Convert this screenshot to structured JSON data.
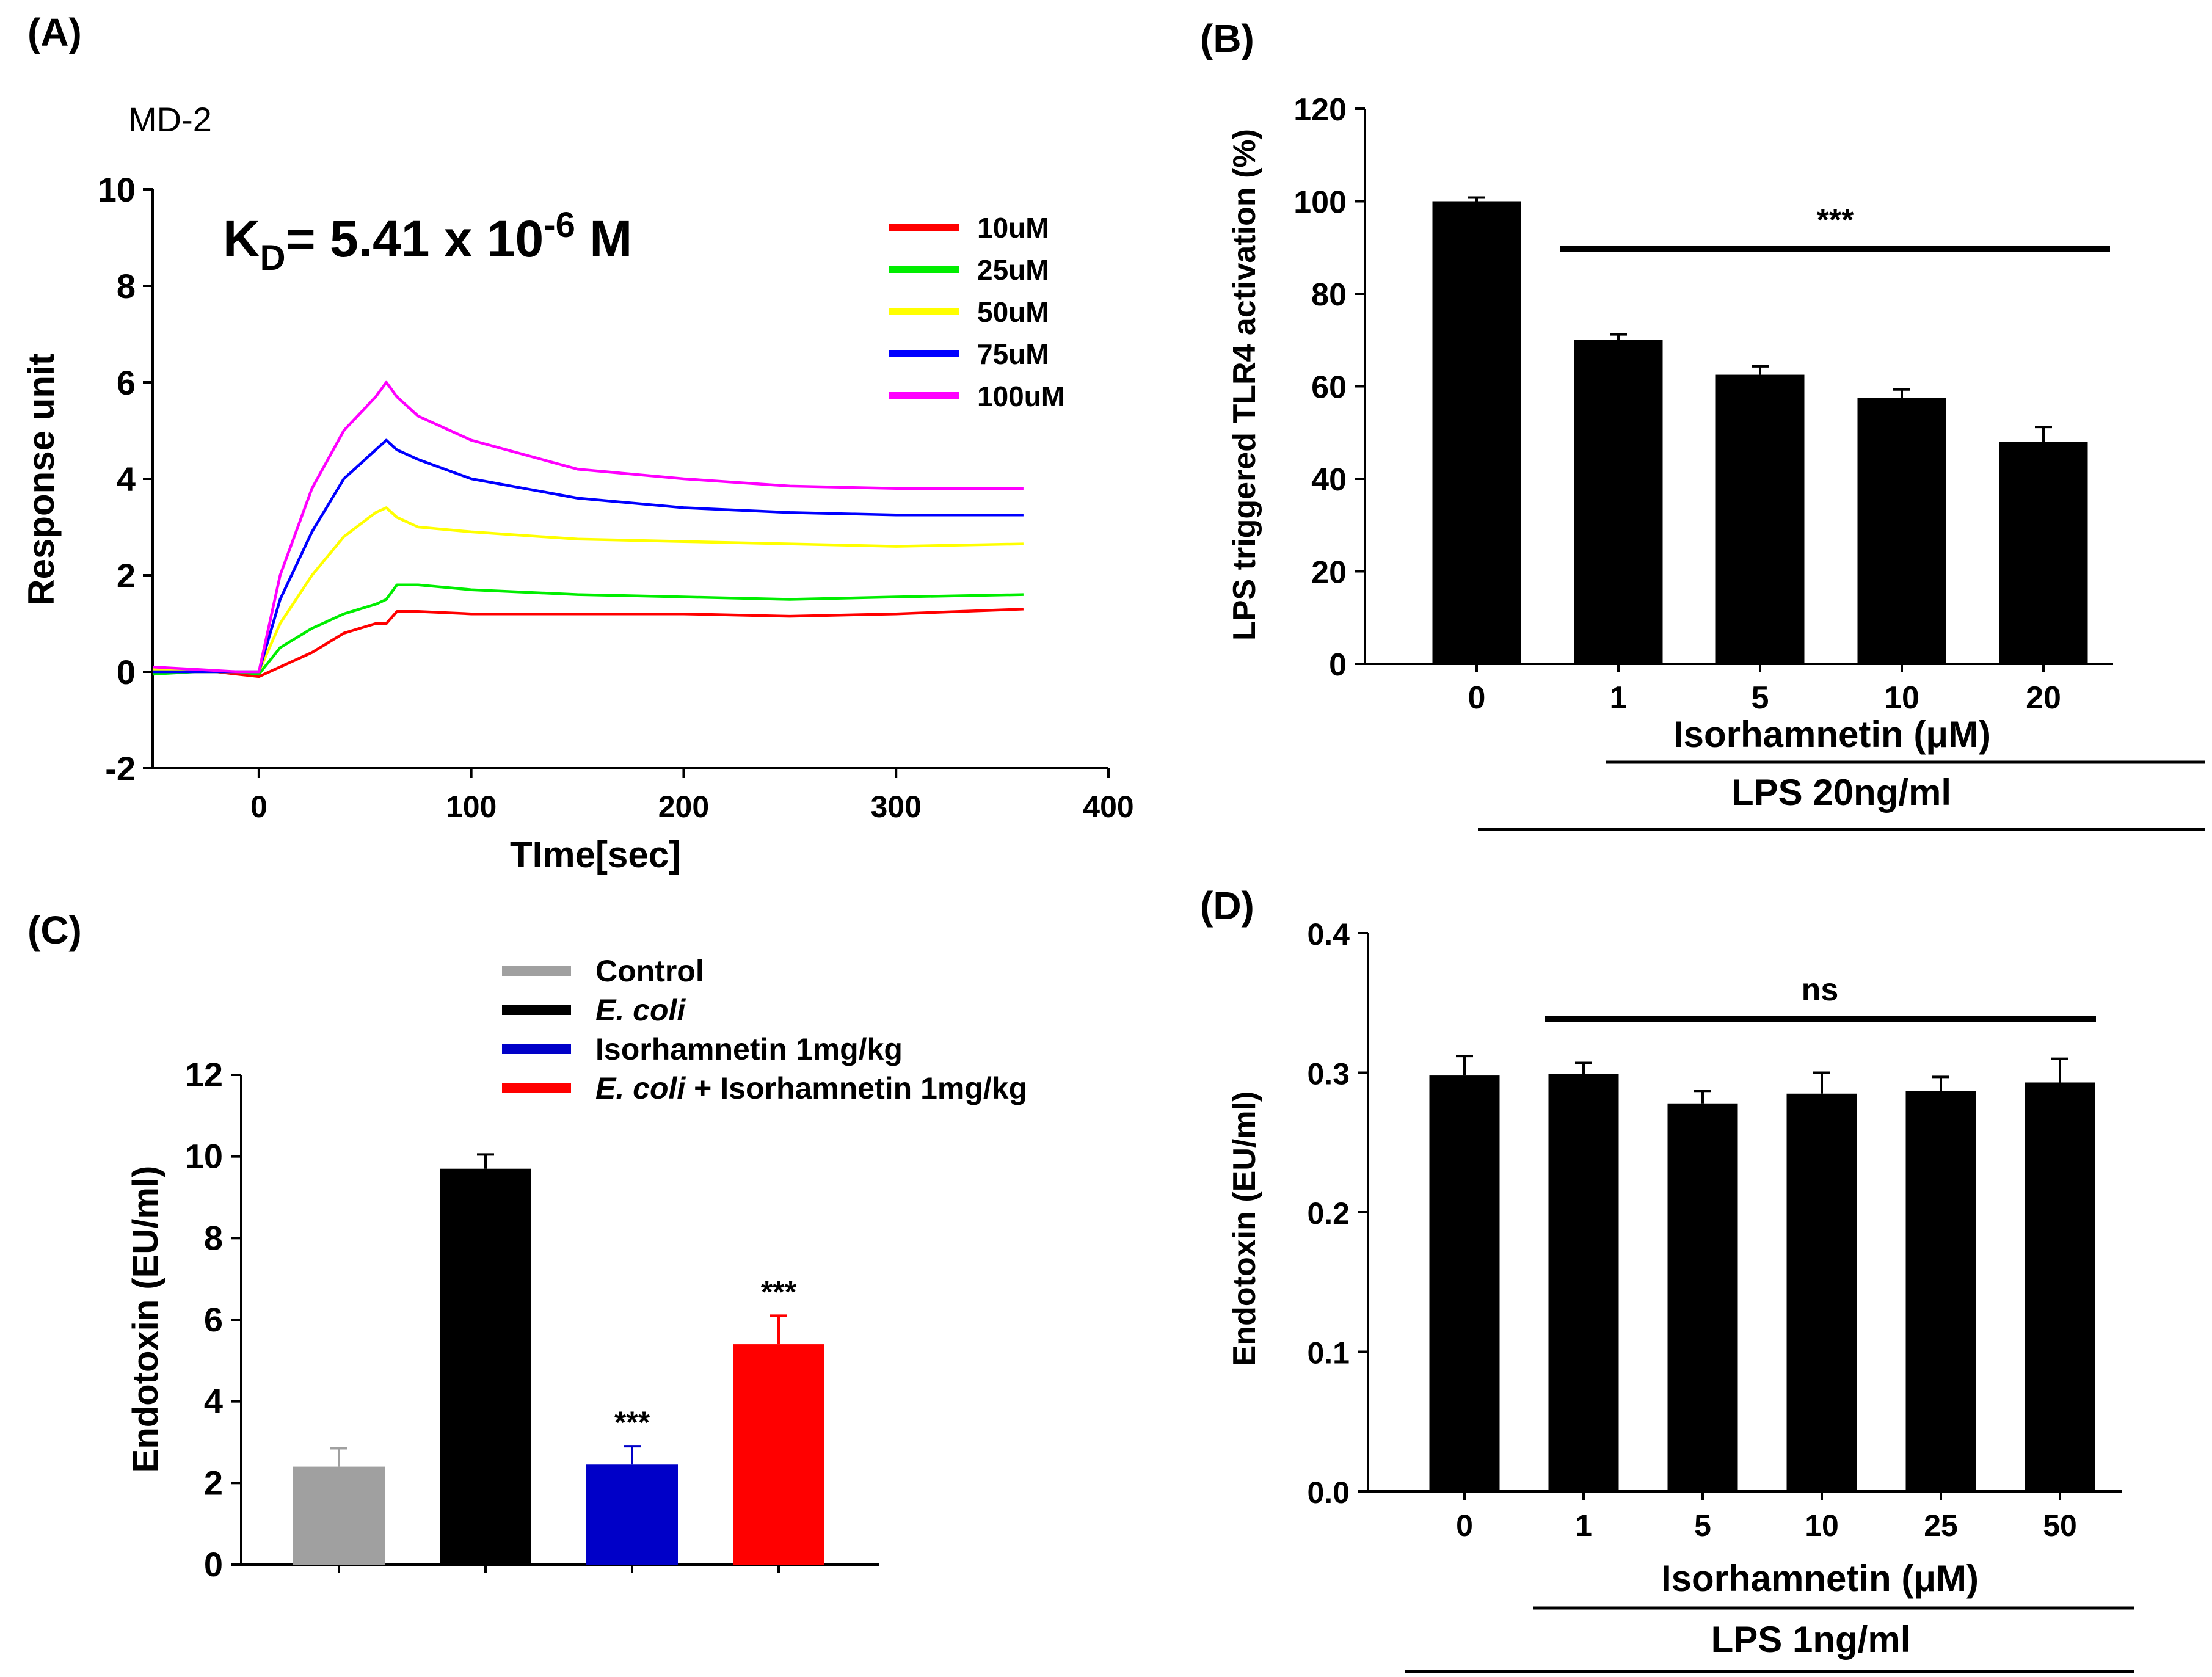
{
  "chart_data": [
    {
      "panel": "(A)",
      "type": "line",
      "subtitle": "MD-2",
      "annotation_main": "K",
      "annotation_sub": "D",
      "annotation_rest": "= 5.41 x 10",
      "annotation_sup": "-6",
      "annotation_unit": " M",
      "xlabel": "TIme[sec]",
      "ylabel": "Response unit",
      "xlim": [
        -50,
        400
      ],
      "ylim": [
        -2,
        10
      ],
      "xticks": [
        "0",
        "100",
        "200",
        "300",
        "400"
      ],
      "xtick_values": [
        0,
        100,
        200,
        300,
        400
      ],
      "yticks": [
        "-2",
        "0",
        "2",
        "4",
        "6",
        "8",
        "10"
      ],
      "ytick_values": [
        -2,
        0,
        2,
        4,
        6,
        8,
        10
      ],
      "series": [
        {
          "name": "10uM",
          "color": "#ff0000",
          "x": [
            -50,
            -30,
            -10,
            0,
            10,
            25,
            40,
            55,
            60,
            65,
            75,
            100,
            150,
            200,
            250,
            300,
            360
          ],
          "y": [
            0,
            0.05,
            -0.05,
            -0.1,
            0.1,
            0.4,
            0.8,
            1.0,
            1.0,
            1.25,
            1.25,
            1.2,
            1.2,
            1.2,
            1.15,
            1.2,
            1.3
          ]
        },
        {
          "name": "25uM",
          "color": "#00ee00",
          "x": [
            -50,
            -30,
            -10,
            0,
            10,
            25,
            40,
            55,
            60,
            65,
            75,
            100,
            150,
            200,
            250,
            300,
            360
          ],
          "y": [
            -0.05,
            0,
            0,
            -0.05,
            0.5,
            0.9,
            1.2,
            1.4,
            1.5,
            1.8,
            1.8,
            1.7,
            1.6,
            1.55,
            1.5,
            1.55,
            1.6
          ]
        },
        {
          "name": "50uM",
          "color": "#ffff00",
          "x": [
            -50,
            -30,
            -10,
            0,
            10,
            25,
            40,
            55,
            60,
            65,
            75,
            100,
            150,
            200,
            250,
            300,
            360
          ],
          "y": [
            0.05,
            0,
            0,
            0,
            1.0,
            2.0,
            2.8,
            3.3,
            3.4,
            3.2,
            3.0,
            2.9,
            2.75,
            2.7,
            2.65,
            2.6,
            2.65
          ]
        },
        {
          "name": "75uM",
          "color": "#0000ff",
          "x": [
            -50,
            -30,
            -10,
            0,
            10,
            25,
            40,
            55,
            60,
            65,
            75,
            100,
            150,
            200,
            250,
            300,
            360
          ],
          "y": [
            0,
            0,
            0,
            0,
            1.5,
            2.9,
            4.0,
            4.6,
            4.8,
            4.6,
            4.4,
            4.0,
            3.6,
            3.4,
            3.3,
            3.25,
            3.25
          ]
        },
        {
          "name": "100uM",
          "color": "#ff00ff",
          "x": [
            -50,
            -30,
            -10,
            0,
            10,
            25,
            40,
            55,
            60,
            65,
            75,
            100,
            150,
            200,
            250,
            300,
            360
          ],
          "y": [
            0.1,
            0.05,
            0,
            0,
            2.0,
            3.8,
            5.0,
            5.7,
            6.0,
            5.7,
            5.3,
            4.8,
            4.2,
            4.0,
            3.85,
            3.8,
            3.8
          ]
        }
      ]
    },
    {
      "panel": "(B)",
      "type": "bar",
      "ylabel": "LPS triggered TLR4 activation (%)",
      "ylim": [
        0,
        120
      ],
      "yticks": [
        "0",
        "20",
        "40",
        "60",
        "80",
        "100",
        "120"
      ],
      "ytick_values": [
        0,
        20,
        40,
        60,
        80,
        100,
        120
      ],
      "categories": [
        "0",
        "1",
        "5",
        "10",
        "20"
      ],
      "values": [
        100,
        70,
        62.5,
        57.5,
        48
      ],
      "errors": [
        0.8,
        1.2,
        1.8,
        1.8,
        3.2
      ],
      "bar_color": "#000000",
      "significance": "***",
      "xlabel": "Isorhamnetin (μM)",
      "treatment_label": "LPS 20ng/ml"
    },
    {
      "panel": "(C)",
      "type": "bar",
      "ylabel": "Endotoxin (EU/ml)",
      "ylim": [
        0,
        12
      ],
      "yticks": [
        "0",
        "2",
        "4",
        "6",
        "8",
        "10",
        "12"
      ],
      "ytick_values": [
        0,
        2,
        4,
        6,
        8,
        10,
        12
      ],
      "categories": [
        "Control",
        "E. coli",
        "Isorhamnetin 1mg/kg",
        "E. coli + Isorhamnetin 1mg/kg"
      ],
      "values": [
        2.4,
        9.7,
        2.45,
        5.4
      ],
      "errors": [
        0.45,
        0.35,
        0.45,
        0.7
      ],
      "colors": [
        "#a0a0a0",
        "#000000",
        "#0000c8",
        "#ff0000"
      ],
      "significance": [
        "",
        "",
        "***",
        "***"
      ],
      "legend": [
        {
          "italic": "",
          "text": "Control"
        },
        {
          "italic": "E. coli",
          "text": ""
        },
        {
          "italic": "",
          "text": "Isorhamnetin 1mg/kg"
        },
        {
          "italic": "E. coli",
          "text": " + Isorhamnetin 1mg/kg"
        }
      ]
    },
    {
      "panel": "(D)",
      "type": "bar",
      "ylabel": "Endotoxin (EU/ml)",
      "ylim": [
        0,
        0.4
      ],
      "yticks": [
        "0.0",
        "0.1",
        "0.2",
        "0.3",
        "0.4"
      ],
      "ytick_values": [
        0,
        0.1,
        0.2,
        0.3,
        0.4
      ],
      "categories": [
        "0",
        "1",
        "5",
        "10",
        "25",
        "50"
      ],
      "values": [
        0.298,
        0.299,
        0.278,
        0.285,
        0.287,
        0.293
      ],
      "errors": [
        0.014,
        0.008,
        0.009,
        0.015,
        0.01,
        0.017
      ],
      "bar_color": "#000000",
      "significance": "ns",
      "xlabel": "Isorhamnetin (μM)",
      "treatment_label": "LPS 1ng/ml"
    }
  ]
}
